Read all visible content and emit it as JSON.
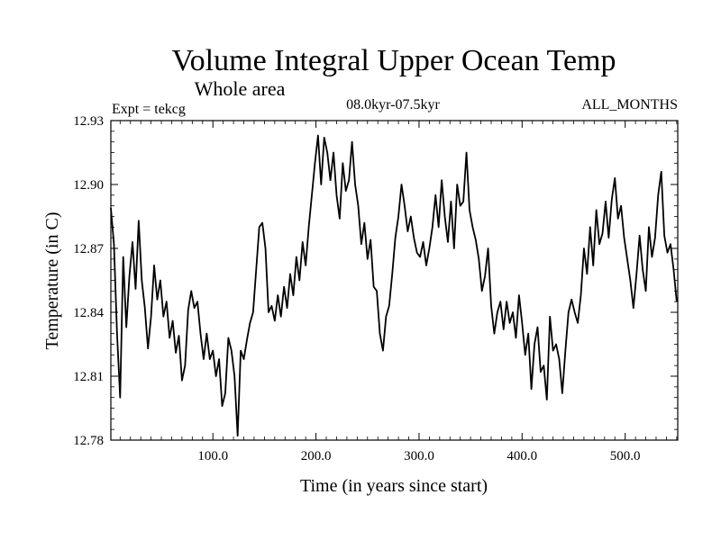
{
  "chart_data": {
    "type": "line",
    "title": "Volume Integral Upper Ocean Temp",
    "subtitle": "Whole area",
    "experiment_label": "Expt = tekcg",
    "period_label": "08.0kyr-07.5kyr",
    "months_label": "ALL_MONTHS",
    "xlabel": "Time (in years since start)",
    "ylabel": "Temperature (in C)",
    "xlim": [
      1,
      551
    ],
    "ylim": [
      12.78,
      12.93
    ],
    "x_ticks": [
      100,
      200,
      300,
      400,
      500
    ],
    "x_tick_labels": [
      "100.0",
      "200.0",
      "300.0",
      "400.0",
      "500.0"
    ],
    "y_ticks": [
      12.78,
      12.81,
      12.84,
      12.87,
      12.9,
      12.93
    ],
    "y_tick_labels": [
      "12.78",
      "12.81",
      "12.84",
      "12.87",
      "12.90",
      "12.93"
    ],
    "grid": false,
    "series": [
      {
        "name": "Volume integral upper ocean temperature",
        "color": "#000000",
        "points": [
          [
            1,
            12.889
          ],
          [
            4,
            12.872
          ],
          [
            7,
            12.83
          ],
          [
            10,
            12.8
          ],
          [
            13,
            12.866
          ],
          [
            16,
            12.833
          ],
          [
            19,
            12.857
          ],
          [
            22,
            12.873
          ],
          [
            25,
            12.851
          ],
          [
            28,
            12.883
          ],
          [
            31,
            12.855
          ],
          [
            34,
            12.842
          ],
          [
            37,
            12.823
          ],
          [
            40,
            12.838
          ],
          [
            43,
            12.862
          ],
          [
            46,
            12.846
          ],
          [
            49,
            12.855
          ],
          [
            52,
            12.838
          ],
          [
            55,
            12.845
          ],
          [
            58,
            12.828
          ],
          [
            61,
            12.836
          ],
          [
            64,
            12.821
          ],
          [
            67,
            12.829
          ],
          [
            70,
            12.808
          ],
          [
            73,
            12.815
          ],
          [
            76,
            12.841
          ],
          [
            79,
            12.85
          ],
          [
            82,
            12.842
          ],
          [
            85,
            12.845
          ],
          [
            88,
            12.83
          ],
          [
            91,
            12.818
          ],
          [
            94,
            12.83
          ],
          [
            97,
            12.818
          ],
          [
            100,
            12.822
          ],
          [
            103,
            12.81
          ],
          [
            106,
            12.818
          ],
          [
            109,
            12.796
          ],
          [
            112,
            12.802
          ],
          [
            115,
            12.828
          ],
          [
            118,
            12.822
          ],
          [
            121,
            12.81
          ],
          [
            124,
            12.782
          ],
          [
            127,
            12.822
          ],
          [
            130,
            12.818
          ],
          [
            133,
            12.827
          ],
          [
            136,
            12.835
          ],
          [
            139,
            12.84
          ],
          [
            142,
            12.86
          ],
          [
            145,
            12.88
          ],
          [
            148,
            12.882
          ],
          [
            151,
            12.87
          ],
          [
            154,
            12.84
          ],
          [
            157,
            12.843
          ],
          [
            160,
            12.836
          ],
          [
            163,
            12.848
          ],
          [
            166,
            12.838
          ],
          [
            169,
            12.852
          ],
          [
            172,
            12.842
          ],
          [
            175,
            12.858
          ],
          [
            178,
            12.848
          ],
          [
            181,
            12.866
          ],
          [
            184,
            12.855
          ],
          [
            187,
            12.873
          ],
          [
            190,
            12.862
          ],
          [
            193,
            12.88
          ],
          [
            196,
            12.895
          ],
          [
            199,
            12.91
          ],
          [
            202,
            12.923
          ],
          [
            205,
            12.9
          ],
          [
            208,
            12.922
          ],
          [
            211,
            12.915
          ],
          [
            214,
            12.902
          ],
          [
            217,
            12.915
          ],
          [
            220,
            12.895
          ],
          [
            223,
            12.884
          ],
          [
            226,
            12.91
          ],
          [
            229,
            12.897
          ],
          [
            232,
            12.902
          ],
          [
            235,
            12.92
          ],
          [
            238,
            12.9
          ],
          [
            241,
            12.89
          ],
          [
            244,
            12.872
          ],
          [
            247,
            12.882
          ],
          [
            250,
            12.865
          ],
          [
            253,
            12.874
          ],
          [
            256,
            12.852
          ],
          [
            259,
            12.85
          ],
          [
            262,
            12.83
          ],
          [
            265,
            12.822
          ],
          [
            268,
            12.838
          ],
          [
            271,
            12.843
          ],
          [
            274,
            12.858
          ],
          [
            277,
            12.875
          ],
          [
            280,
            12.885
          ],
          [
            283,
            12.9
          ],
          [
            286,
            12.89
          ],
          [
            289,
            12.878
          ],
          [
            292,
            12.885
          ],
          [
            295,
            12.875
          ],
          [
            298,
            12.868
          ],
          [
            301,
            12.866
          ],
          [
            304,
            12.873
          ],
          [
            307,
            12.862
          ],
          [
            310,
            12.87
          ],
          [
            313,
            12.88
          ],
          [
            316,
            12.895
          ],
          [
            319,
            12.88
          ],
          [
            322,
            12.902
          ],
          [
            325,
            12.885
          ],
          [
            328,
            12.873
          ],
          [
            331,
            12.892
          ],
          [
            334,
            12.87
          ],
          [
            337,
            12.9
          ],
          [
            340,
            12.89
          ],
          [
            343,
            12.892
          ],
          [
            346,
            12.915
          ],
          [
            349,
            12.888
          ],
          [
            352,
            12.88
          ],
          [
            355,
            12.874
          ],
          [
            358,
            12.865
          ],
          [
            361,
            12.85
          ],
          [
            364,
            12.857
          ],
          [
            367,
            12.87
          ],
          [
            370,
            12.843
          ],
          [
            373,
            12.83
          ],
          [
            376,
            12.84
          ],
          [
            379,
            12.845
          ],
          [
            382,
            12.832
          ],
          [
            385,
            12.845
          ],
          [
            388,
            12.835
          ],
          [
            391,
            12.84
          ],
          [
            394,
            12.828
          ],
          [
            397,
            12.848
          ],
          [
            400,
            12.835
          ],
          [
            403,
            12.82
          ],
          [
            406,
            12.83
          ],
          [
            409,
            12.804
          ],
          [
            412,
            12.825
          ],
          [
            415,
            12.833
          ],
          [
            418,
            12.812
          ],
          [
            421,
            12.815
          ],
          [
            424,
            12.799
          ],
          [
            427,
            12.838
          ],
          [
            430,
            12.822
          ],
          [
            433,
            12.825
          ],
          [
            436,
            12.818
          ],
          [
            439,
            12.802
          ],
          [
            442,
            12.822
          ],
          [
            445,
            12.84
          ],
          [
            448,
            12.846
          ],
          [
            451,
            12.84
          ],
          [
            454,
            12.835
          ],
          [
            457,
            12.848
          ],
          [
            460,
            12.87
          ],
          [
            463,
            12.858
          ],
          [
            466,
            12.88
          ],
          [
            469,
            12.862
          ],
          [
            472,
            12.888
          ],
          [
            475,
            12.872
          ],
          [
            478,
            12.877
          ],
          [
            481,
            12.892
          ],
          [
            484,
            12.875
          ],
          [
            487,
            12.893
          ],
          [
            490,
            12.903
          ],
          [
            493,
            12.884
          ],
          [
            496,
            12.89
          ],
          [
            499,
            12.875
          ],
          [
            502,
            12.865
          ],
          [
            505,
            12.855
          ],
          [
            508,
            12.842
          ],
          [
            511,
            12.858
          ],
          [
            514,
            12.876
          ],
          [
            517,
            12.86
          ],
          [
            520,
            12.85
          ],
          [
            523,
            12.88
          ],
          [
            526,
            12.866
          ],
          [
            529,
            12.875
          ],
          [
            532,
            12.895
          ],
          [
            535,
            12.906
          ],
          [
            538,
            12.876
          ],
          [
            541,
            12.868
          ],
          [
            544,
            12.872
          ],
          [
            547,
            12.86
          ],
          [
            550,
            12.845
          ]
        ]
      }
    ]
  }
}
